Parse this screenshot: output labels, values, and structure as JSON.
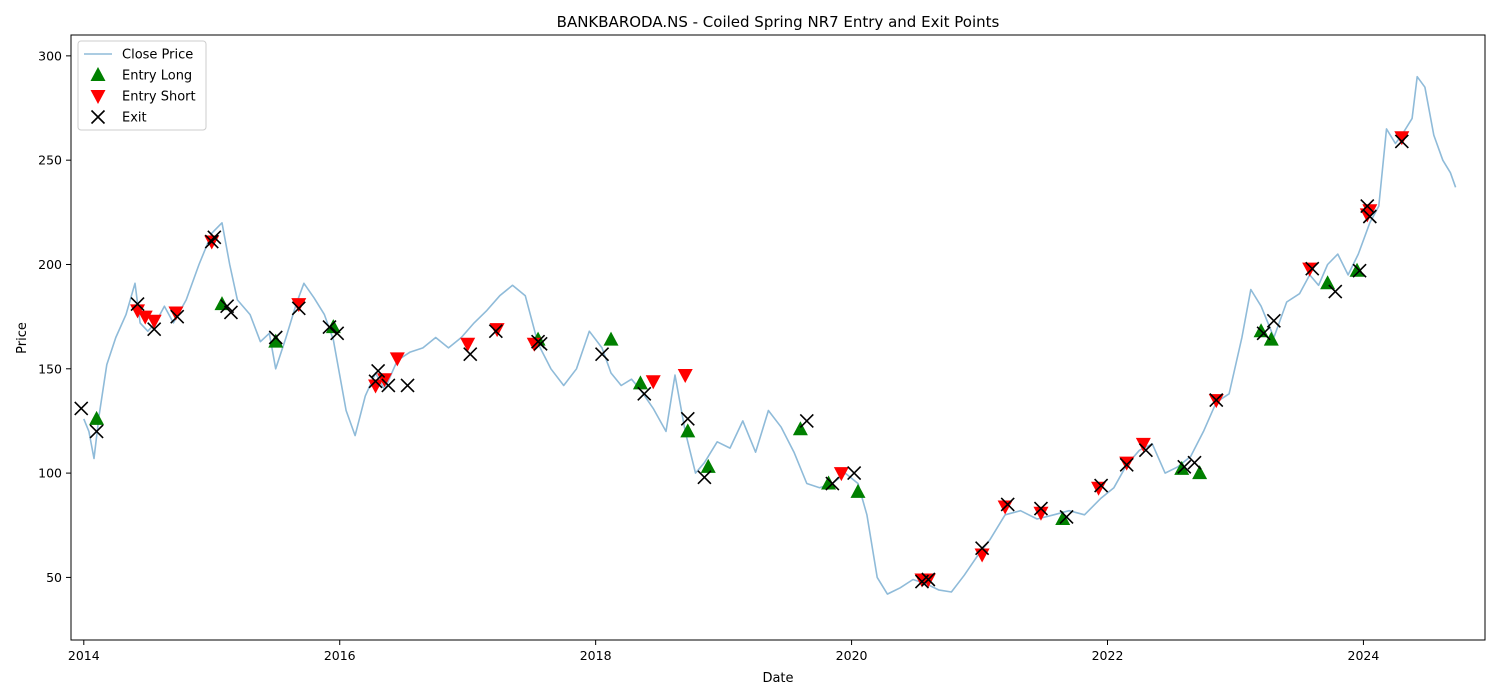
{
  "chart_data": {
    "type": "line",
    "title": "BANKBARODA.NS - Coiled Spring NR7 Entry and Exit Points",
    "xlabel": "Date",
    "ylabel": "Price",
    "xlim": [
      2013.9,
      2024.95
    ],
    "ylim": [
      20,
      310
    ],
    "x_ticks": [
      2014,
      2016,
      2018,
      2020,
      2022,
      2024
    ],
    "x_tick_labels": [
      "2014",
      "2016",
      "2018",
      "2020",
      "2022",
      "2024"
    ],
    "y_ticks": [
      50,
      100,
      150,
      200,
      250,
      300
    ],
    "y_tick_labels": [
      "50",
      "100",
      "150",
      "200",
      "250",
      "300"
    ],
    "grid": false,
    "legend_position": "top-left",
    "colors": {
      "close": "#1f77b4",
      "long": "#008000",
      "short": "#ff0000",
      "exit": "#000000"
    },
    "series": [
      {
        "name": "Close Price",
        "kind": "line",
        "x": [
          2014.0,
          2014.04,
          2014.08,
          2014.12,
          2014.18,
          2014.25,
          2014.33,
          2014.4,
          2014.44,
          2014.5,
          2014.56,
          2014.63,
          2014.7,
          2014.8,
          2014.9,
          2015.0,
          2015.08,
          2015.14,
          2015.2,
          2015.3,
          2015.38,
          2015.45,
          2015.5,
          2015.58,
          2015.66,
          2015.72,
          2015.8,
          2015.88,
          2015.95,
          2016.05,
          2016.12,
          2016.2,
          2016.28,
          2016.35,
          2016.45,
          2016.55,
          2016.65,
          2016.75,
          2016.85,
          2016.95,
          2017.05,
          2017.15,
          2017.25,
          2017.35,
          2017.45,
          2017.55,
          2017.65,
          2017.75,
          2017.85,
          2017.95,
          2018.05,
          2018.12,
          2018.2,
          2018.28,
          2018.35,
          2018.45,
          2018.55,
          2018.62,
          2018.7,
          2018.78,
          2018.85,
          2018.95,
          2019.05,
          2019.15,
          2019.25,
          2019.35,
          2019.45,
          2019.55,
          2019.65,
          2019.75,
          2019.85,
          2019.95,
          2020.05,
          2020.12,
          2020.2,
          2020.28,
          2020.38,
          2020.48,
          2020.58,
          2020.68,
          2020.78,
          2020.88,
          2020.98,
          2021.08,
          2021.2,
          2021.32,
          2021.45,
          2021.58,
          2021.7,
          2021.82,
          2021.95,
          2022.05,
          2022.15,
          2022.25,
          2022.35,
          2022.45,
          2022.55,
          2022.65,
          2022.75,
          2022.85,
          2022.95,
          2023.05,
          2023.12,
          2023.2,
          2023.3,
          2023.4,
          2023.5,
          2023.58,
          2023.65,
          2023.72,
          2023.8,
          2023.88,
          2023.96,
          2024.05,
          2024.12,
          2024.18,
          2024.25,
          2024.3,
          2024.38,
          2024.42,
          2024.48,
          2024.55,
          2024.62,
          2024.68,
          2024.72
        ],
        "y": [
          126,
          120,
          107,
          128,
          152,
          165,
          176,
          191,
          172,
          168,
          172,
          180,
          172,
          183,
          200,
          215,
          220,
          200,
          183,
          176,
          163,
          167,
          150,
          165,
          181,
          191,
          184,
          176,
          164,
          130,
          118,
          137,
          148,
          140,
          154,
          158,
          160,
          165,
          160,
          165,
          172,
          178,
          185,
          190,
          185,
          162,
          150,
          142,
          150,
          168,
          160,
          148,
          142,
          145,
          140,
          131,
          120,
          147,
          120,
          100,
          105,
          115,
          112,
          125,
          110,
          130,
          122,
          110,
          95,
          93,
          95,
          100,
          95,
          80,
          50,
          42,
          45,
          49,
          47,
          44,
          43,
          51,
          60,
          68,
          80,
          82,
          78,
          80,
          82,
          80,
          88,
          93,
          104,
          111,
          114,
          100,
          103,
          108,
          120,
          134,
          138,
          165,
          188,
          180,
          165,
          182,
          186,
          195,
          190,
          200,
          205,
          195,
          205,
          220,
          228,
          265,
          258,
          262,
          270,
          290,
          285,
          262,
          250,
          244,
          237
        ]
      },
      {
        "name": "Entry Long",
        "kind": "marker",
        "x": [
          2014.1,
          2015.08,
          2015.5,
          2015.95,
          2017.55,
          2018.12,
          2018.35,
          2018.72,
          2018.88,
          2019.6,
          2019.82,
          2020.05,
          2021.65,
          2022.58,
          2022.72,
          2023.2,
          2023.28,
          2023.72,
          2023.95
        ],
        "y": [
          126,
          181,
          163,
          170,
          164,
          164,
          143,
          120,
          103,
          121,
          95,
          91,
          78,
          102,
          100,
          168,
          164,
          191,
          197
        ]
      },
      {
        "name": "Entry Short",
        "kind": "marker",
        "x": [
          2014.42,
          2014.48,
          2014.55,
          2014.72,
          2015.0,
          2015.68,
          2016.28,
          2016.35,
          2016.45,
          2017.0,
          2017.23,
          2017.52,
          2018.45,
          2018.7,
          2019.92,
          2020.55,
          2020.6,
          2021.02,
          2021.2,
          2021.48,
          2021.93,
          2022.15,
          2022.28,
          2022.85,
          2023.58,
          2024.03,
          2024.05,
          2024.3
        ],
        "y": [
          178,
          175,
          173,
          177,
          211,
          181,
          142,
          145,
          155,
          162,
          169,
          162,
          144,
          147,
          100,
          49,
          49,
          61,
          84,
          81,
          93,
          105,
          114,
          135,
          198,
          224,
          226,
          261
        ]
      },
      {
        "name": "Exit",
        "kind": "marker",
        "x": [
          2013.98,
          2014.1,
          2014.42,
          2014.55,
          2014.73,
          2015.0,
          2015.02,
          2015.12,
          2015.15,
          2015.5,
          2015.68,
          2015.92,
          2015.98,
          2016.28,
          2016.3,
          2016.38,
          2016.53,
          2017.02,
          2017.22,
          2017.55,
          2017.57,
          2018.05,
          2018.38,
          2018.72,
          2018.85,
          2019.65,
          2019.85,
          2020.02,
          2020.55,
          2020.6,
          2021.02,
          2021.22,
          2021.48,
          2021.68,
          2021.95,
          2022.15,
          2022.3,
          2022.6,
          2022.68,
          2022.85,
          2023.22,
          2023.3,
          2023.6,
          2023.78,
          2023.97,
          2024.03,
          2024.05,
          2024.3
        ],
        "y": [
          131,
          120,
          181,
          169,
          175,
          211,
          213,
          180,
          177,
          165,
          179,
          170,
          167,
          144,
          149,
          142,
          142,
          157,
          168,
          163,
          162,
          157,
          138,
          126,
          98,
          125,
          95,
          100,
          48,
          49,
          64,
          85,
          83,
          79,
          94,
          104,
          111,
          103,
          105,
          135,
          167,
          173,
          198,
          187,
          197,
          228,
          223,
          259
        ]
      }
    ]
  }
}
